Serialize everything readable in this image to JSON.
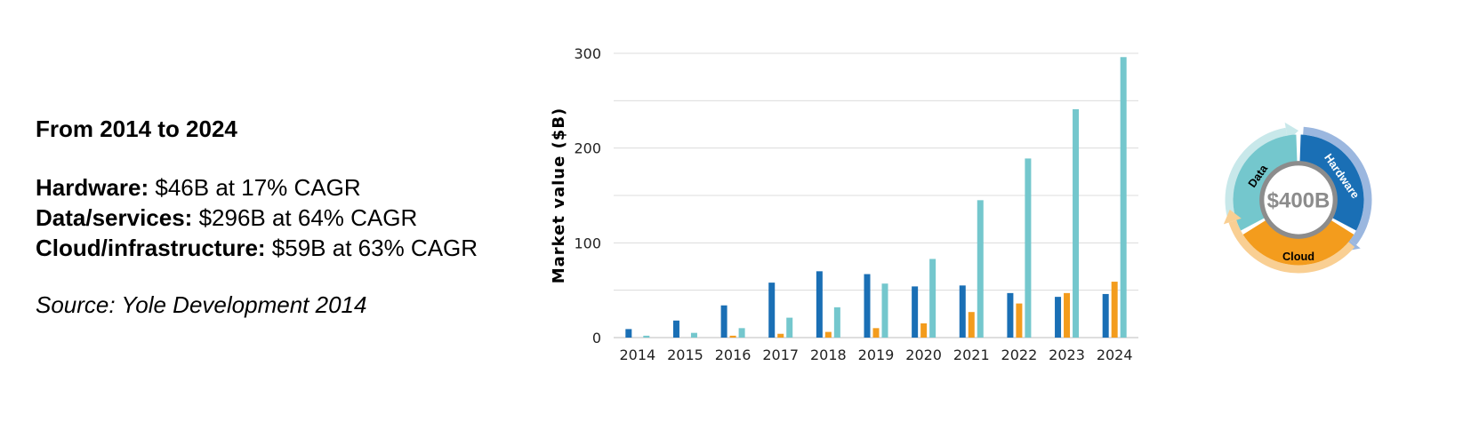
{
  "summary": {
    "heading": "From 2014 to 2024",
    "lines": [
      {
        "label": "Hardware:",
        "text": " $46B at 17% CAGR"
      },
      {
        "label": "Data/services:",
        "text": " $296B at 64% CAGR"
      },
      {
        "label": "Cloud/infrastructure:",
        "text": " $59B at 63% CAGR"
      }
    ],
    "source": "Source: Yole Development 2014"
  },
  "chart_data": {
    "type": "bar",
    "categories": [
      "2014",
      "2015",
      "2016",
      "2017",
      "2018",
      "2019",
      "2020",
      "2021",
      "2022",
      "2023",
      "2024"
    ],
    "series": [
      {
        "color": "#1a6fb5",
        "values": [
          9,
          18,
          34,
          58,
          70,
          67,
          54,
          55,
          47,
          43,
          46
        ]
      },
      {
        "color": "#f39c1d",
        "values": [
          0,
          0,
          2,
          4,
          6,
          10,
          15,
          27,
          36,
          47,
          59
        ]
      },
      {
        "color": "#74c7cd",
        "values": [
          2,
          5,
          10,
          21,
          32,
          57,
          83,
          145,
          189,
          241,
          296
        ]
      }
    ],
    "ylabel": "Market value ($B)",
    "ylim": [
      0,
      300
    ],
    "yticks": [
      0,
      100,
      200,
      300
    ],
    "grid": true
  },
  "ring": {
    "center_label": "$400B",
    "segments": [
      {
        "label": "Data",
        "color": "#74c7cd",
        "outer_color": "#c8e8ea"
      },
      {
        "label": "Hardware",
        "color": "#1a6fb5",
        "outer_color": "#9bb7df"
      },
      {
        "label": "Cloud",
        "color": "#f39c1d",
        "outer_color": "#f9cf93"
      }
    ]
  }
}
